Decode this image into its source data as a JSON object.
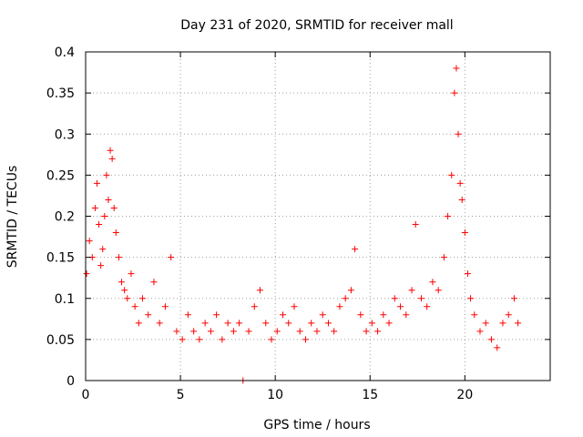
{
  "chart_data": {
    "type": "scatter",
    "title": "Day 231 of 2020, SRMTID for receiver mall",
    "xlabel": "GPS time / hours",
    "ylabel": "SRMTID / TECUs",
    "xlim": [
      0,
      24.5
    ],
    "ylim": [
      0,
      0.4
    ],
    "x_ticks": [
      0,
      5,
      10,
      15,
      20
    ],
    "x_tick_labels": [
      "0",
      "5",
      "10",
      "15",
      "20"
    ],
    "y_ticks": [
      0,
      0.05,
      0.1,
      0.15,
      0.2,
      0.25,
      0.3,
      0.35,
      0.4
    ],
    "y_tick_labels": [
      "0",
      "0.05",
      "0.1",
      "0.15",
      "0.2",
      "0.25",
      "0.3",
      "0.35",
      "0.4"
    ],
    "grid": true,
    "legend": "none",
    "marker": "plus",
    "color": "#ff0000",
    "series": [
      {
        "x": [
          0.05,
          0.2,
          0.35,
          0.5,
          0.6,
          0.7,
          0.8,
          0.9,
          1.0,
          1.1,
          1.2,
          1.3,
          1.4,
          1.5,
          1.6,
          1.75,
          1.9,
          2.05,
          2.2,
          2.4,
          2.6,
          2.8,
          3.0,
          3.3,
          3.6,
          3.9,
          4.2,
          4.5,
          4.8,
          5.1,
          5.4,
          5.7,
          6.0,
          6.3,
          6.6,
          6.9,
          7.2,
          7.5,
          7.8,
          8.1,
          8.3,
          8.6,
          8.9,
          9.2,
          9.5,
          9.8,
          10.1,
          10.4,
          10.7,
          11.0,
          11.3,
          11.6,
          11.9,
          12.2,
          12.5,
          12.8,
          13.1,
          13.4,
          13.7,
          14.0,
          14.2,
          14.5,
          14.8,
          15.1,
          15.4,
          15.7,
          16.0,
          16.3,
          16.6,
          16.9,
          17.2,
          17.4,
          17.7,
          18.0,
          18.3,
          18.6,
          18.9,
          19.1,
          19.3,
          19.45,
          19.55,
          19.65,
          19.75,
          19.85,
          20.0,
          20.15,
          20.3,
          20.5,
          20.8,
          21.1,
          21.4,
          21.7,
          22.0,
          22.3,
          22.6,
          22.8
        ],
        "y": [
          0.13,
          0.17,
          0.15,
          0.21,
          0.24,
          0.19,
          0.14,
          0.16,
          0.2,
          0.25,
          0.22,
          0.28,
          0.27,
          0.21,
          0.18,
          0.15,
          0.12,
          0.11,
          0.1,
          0.13,
          0.09,
          0.07,
          0.1,
          0.08,
          0.12,
          0.07,
          0.09,
          0.15,
          0.06,
          0.05,
          0.08,
          0.06,
          0.05,
          0.07,
          0.06,
          0.08,
          0.05,
          0.07,
          0.06,
          0.07,
          0.0,
          0.06,
          0.09,
          0.11,
          0.07,
          0.05,
          0.06,
          0.08,
          0.07,
          0.09,
          0.06,
          0.05,
          0.07,
          0.06,
          0.08,
          0.07,
          0.06,
          0.09,
          0.1,
          0.11,
          0.16,
          0.08,
          0.06,
          0.07,
          0.06,
          0.08,
          0.07,
          0.1,
          0.09,
          0.08,
          0.11,
          0.19,
          0.1,
          0.09,
          0.12,
          0.11,
          0.15,
          0.2,
          0.25,
          0.35,
          0.38,
          0.3,
          0.24,
          0.22,
          0.18,
          0.13,
          0.1,
          0.08,
          0.06,
          0.07,
          0.05,
          0.04,
          0.07,
          0.08,
          0.1,
          0.07
        ]
      }
    ]
  }
}
